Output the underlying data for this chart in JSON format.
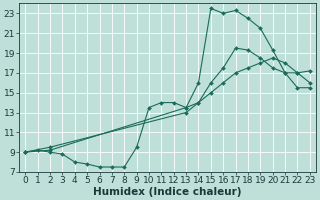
{
  "xlabel": "Humidex (Indice chaleur)",
  "xlim": [
    -0.5,
    23.5
  ],
  "ylim": [
    7,
    24
  ],
  "yticks": [
    7,
    9,
    11,
    13,
    15,
    17,
    19,
    21,
    23
  ],
  "xticks": [
    0,
    1,
    2,
    3,
    4,
    5,
    6,
    7,
    8,
    9,
    10,
    11,
    12,
    13,
    14,
    15,
    16,
    17,
    18,
    19,
    20,
    21,
    22,
    23
  ],
  "bg_color": "#bfe0d8",
  "line_color": "#1a6b5a",
  "grid_color": "#ffffff",
  "line1_x": [
    0,
    1,
    2,
    3,
    4,
    5,
    6,
    7,
    8,
    9,
    10,
    11,
    12,
    13,
    14,
    15,
    16,
    17,
    18,
    19,
    20,
    21,
    22,
    23
  ],
  "line1_y": [
    9,
    9.2,
    9.0,
    8.8,
    8.0,
    7.8,
    7.5,
    7.5,
    7.5,
    9.5,
    13.5,
    14.0,
    14.0,
    13.5,
    16.0,
    23.5,
    23.0,
    23.3,
    22.5,
    21.5,
    19.3,
    17.0,
    17.0,
    17.2
  ],
  "line2_x": [
    0,
    2,
    13,
    14,
    15,
    16,
    17,
    18,
    19,
    20,
    21,
    22,
    23
  ],
  "line2_y": [
    9.0,
    9.2,
    13.5,
    14.0,
    16.0,
    17.5,
    19.5,
    19.3,
    18.5,
    17.5,
    17.0,
    15.5,
    15.5
  ],
  "line3_x": [
    0,
    2,
    13,
    14,
    15,
    16,
    17,
    18,
    19,
    20,
    21,
    22,
    23
  ],
  "line3_y": [
    9.0,
    9.5,
    13.0,
    14.0,
    15.0,
    16.0,
    17.0,
    17.5,
    18.0,
    18.5,
    18.0,
    17.0,
    16.0
  ],
  "font_color": "#1a3a3a",
  "tick_fontsize": 6.5,
  "xlabel_fontsize": 7.5
}
